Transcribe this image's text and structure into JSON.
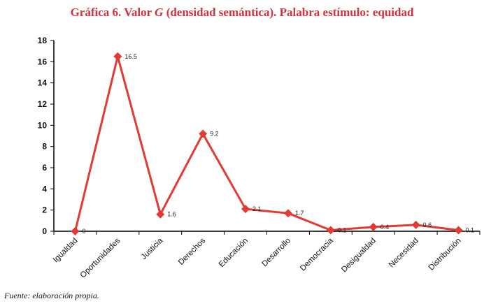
{
  "title": {
    "prefix": "Gráfica 6. Valor ",
    "italic": "G",
    "suffix": " (densidad semántica). Palabra estímulo: equidad"
  },
  "source": "Fuente: elaboración propia.",
  "colors": {
    "title": "#d6303a",
    "series": "#e23a34",
    "axis": "#000000"
  },
  "chart_data": {
    "type": "line",
    "categories": [
      "Igualdad",
      "Oportunidades",
      "Justicia",
      "Derechos",
      "Educación",
      "Desarrollo",
      "Democracia",
      "Desigualdad",
      "Necesidad",
      "Distribución"
    ],
    "series": [
      {
        "values": [
          0,
          16.5,
          1.6,
          9.2,
          2.1,
          1.7,
          0.1,
          0.4,
          0.6,
          0.1
        ]
      }
    ],
    "data_labels": [
      "0",
      "16.5",
      "1.6",
      "9.2",
      "2.1",
      "1.7",
      "0.1",
      "0.4",
      "0.6",
      "0.1"
    ],
    "yticks": [
      "0",
      "2",
      "4",
      "6",
      "8",
      "10",
      "12",
      "14",
      "16",
      "18"
    ],
    "ylim": [
      0,
      18
    ],
    "grid": false,
    "marker": "diamond"
  }
}
